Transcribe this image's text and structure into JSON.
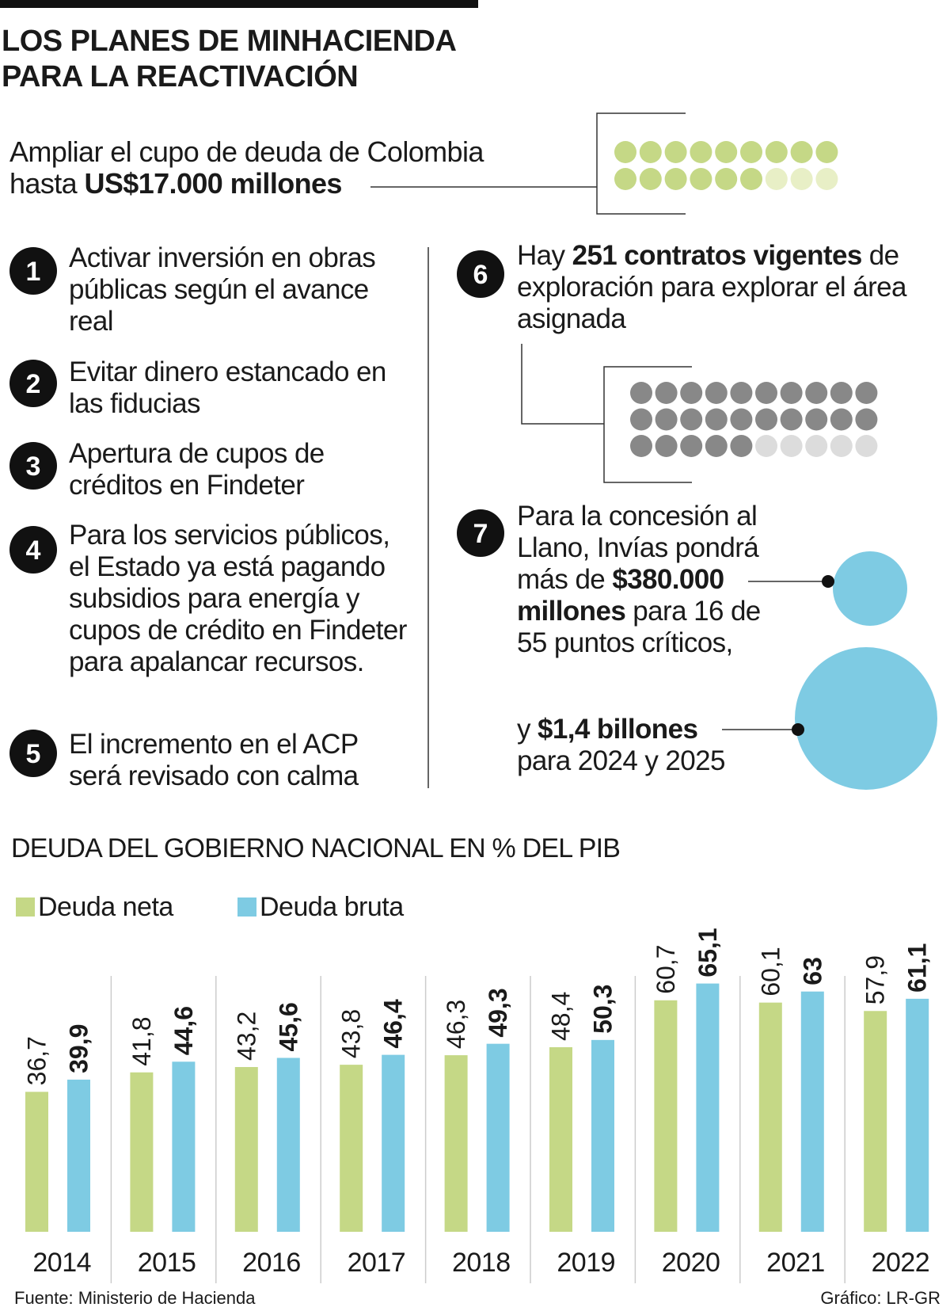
{
  "header": {
    "title": "LOS PLANES DE MINHACIENDA PARA LA REACTIVACIÓN"
  },
  "intro": [
    {
      "text": "Ampliar el cupo de deuda de Colombia hasta "
    },
    {
      "text": "US$17.000 millones",
      "bold": true
    }
  ],
  "items": [
    {
      "number": "1",
      "text": [
        {
          "text": "Activar inversión en obras públicas según el avance real"
        }
      ]
    },
    {
      "number": "2",
      "text": [
        {
          "text": "Evitar dinero estancado en las fiducias"
        }
      ]
    },
    {
      "number": "3",
      "text": [
        {
          "text": "Apertura de cupos de créditos en Findeter"
        }
      ]
    },
    {
      "number": "4",
      "text": [
        {
          "text": "Para los servicios públicos, el Estado ya está pagando subsidios para energía y cupos de crédito en Findeter para apalancar recursos."
        }
      ]
    },
    {
      "number": "5",
      "text": [
        {
          "text": "El incremento en el ACP será revisado con calma"
        }
      ]
    },
    {
      "number": "6",
      "text": [
        {
          "text": "Hay "
        },
        {
          "text": "251 contratos vigentes",
          "bold": true
        },
        {
          "text": " de exploración para explorar el área asignada"
        }
      ]
    },
    {
      "number": "7",
      "text": [
        {
          "text": "Para la concesión al Llano, Invías pondrá más de "
        },
        {
          "text": "$380.000 millones",
          "bold": true
        },
        {
          "text": " para 16 de 55 puntos críticos,"
        }
      ],
      "text2": [
        {
          "text": "y "
        },
        {
          "text": "$1,4 billones",
          "bold": true
        },
        {
          "text": " para 2024 y 2025"
        }
      ]
    }
  ],
  "chart_data": {
    "type": "bar",
    "title": "DEUDA DEL GOBIERNO NACIONAL EN % DEL PIB",
    "categories": [
      "2014",
      "2015",
      "2016",
      "2017",
      "2018",
      "2019",
      "2020",
      "2021",
      "2022"
    ],
    "series": [
      {
        "name": "Deuda neta",
        "color": "#c5d886",
        "values": [
          36.7,
          41.8,
          43.2,
          43.8,
          46.3,
          48.4,
          60.7,
          60.1,
          57.9
        ],
        "value_labels": [
          "36,7",
          "41,8",
          "43,2",
          "43,8",
          "46,3",
          "48,4",
          "60,7",
          "60,1",
          "57,9"
        ]
      },
      {
        "name": "Deuda bruta",
        "color": "#7ecbe3",
        "values": [
          39.9,
          44.6,
          45.6,
          46.4,
          49.3,
          50.3,
          65.1,
          63,
          61.1
        ],
        "value_labels": [
          "39,9",
          "44,6",
          "45,6",
          "46,4",
          "49,3",
          "50,3",
          "65,1",
          "63",
          "61,1"
        ]
      }
    ],
    "ylim": [
      0,
      70
    ]
  },
  "footer": {
    "source": "Fuente: Ministerio de Hacienda",
    "credit": "Gráfico: LR-GR"
  }
}
